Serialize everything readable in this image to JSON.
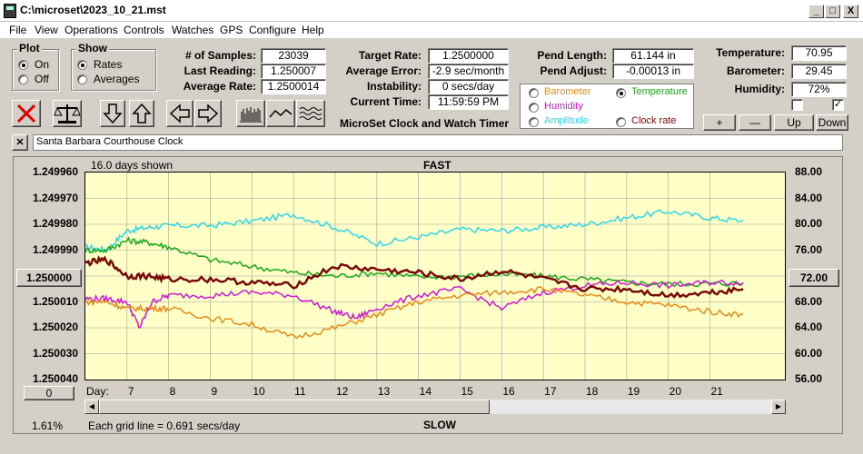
{
  "window": {
    "title": "C:\\microset\\2023_10_21.mst",
    "minimize": "_",
    "maximize": "□",
    "close": "X"
  },
  "menu": [
    "File",
    "View",
    "Operations",
    "Controls",
    "Watches",
    "GPS",
    "Configure",
    "Help"
  ],
  "plot_group": {
    "title": "Plot",
    "options": [
      "On",
      "Off"
    ],
    "selected": "On"
  },
  "show_group": {
    "title": "Show",
    "options": [
      "Rates",
      "Averages"
    ],
    "selected": "Rates"
  },
  "stats": {
    "samples_label": "# of Samples:",
    "samples": "23039",
    "last_reading_label": "Last Reading:",
    "last_reading": "1.250007",
    "average_rate_label": "Average Rate:",
    "average_rate": "1.2500014",
    "target_rate_label": "Target Rate:",
    "target_rate": "1.2500000",
    "average_error_label": "Average Error:",
    "average_error": "-2.9 sec/month",
    "instability_label": "Instability:",
    "instability": "0 secs/day",
    "current_time_label": "Current Time:",
    "current_time": "11:59:59 PM",
    "pend_length_label": "Pend Length:",
    "pend_length": "61.144 in",
    "pend_adjust_label": "Pend Adjust:",
    "pend_adjust": "-0.00013 in"
  },
  "env": {
    "temperature_label": "Temperature:",
    "temperature": "70.95",
    "barometer_label": "Barometer:",
    "barometer": "29.45",
    "humidity_label": "Humidity:",
    "humidity": "72%"
  },
  "app_caption": "MicroSet Clock and Watch Timer",
  "secondary_options": [
    {
      "label": "Barometer",
      "color": "#e88a1a",
      "selected": false
    },
    {
      "label": "Temperature",
      "color": "#1aa81a",
      "selected": true
    },
    {
      "label": "Humidity",
      "color": "#d21ad2",
      "selected": false
    },
    {
      "label": "Clock rate",
      "color": "#7a0a0a",
      "selected": false
    },
    {
      "label": "Amplitude",
      "color": "#30d8e8",
      "selected": false
    }
  ],
  "scale_buttons": {
    "plus": "+",
    "minus": "—",
    "up": "Up",
    "down": "Down"
  },
  "clock_name": "Santa Barbara Courthouse Clock",
  "clear_glyph": "✕",
  "chart_info": {
    "days_shown": "16.0 days shown",
    "top_label": "FAST",
    "bottom_label": "SLOW",
    "grid_note": "Each grid line = 0.691 secs/day",
    "percent": "1.61%",
    "x_prefix": "Day:",
    "left_center_button": "1.250000",
    "right_center_button": "72.00",
    "bottom_left_button": "0"
  },
  "chart_data": {
    "type": "line",
    "xlabel": "Day:",
    "x_ticks": [
      7,
      8,
      9,
      10,
      11,
      12,
      13,
      14,
      15,
      16,
      17,
      18,
      19,
      20,
      21
    ],
    "xlim": [
      6.0,
      22.8
    ],
    "y_left_ticks": [
      "1.249960",
      "1.249970",
      "1.249980",
      "1.249990",
      "1.250000",
      "1.250010",
      "1.250020",
      "1.250030",
      "1.250040"
    ],
    "y_right_ticks": [
      "88.00",
      "84.00",
      "80.00",
      "76.00",
      "72.00",
      "68.00",
      "64.00",
      "60.00",
      "56.00"
    ],
    "y_right_range": [
      56,
      88
    ],
    "series": [
      {
        "color": "#30d8e8",
        "x": [
          6.0,
          6.5,
          7.0,
          7.5,
          8.0,
          9.0,
          10.0,
          11.0,
          12.0,
          13.0,
          14.0,
          15.0,
          16.0,
          17.0,
          18.0,
          19.0,
          20.0,
          21.0,
          21.8
        ],
        "y": [
          76.5,
          76.0,
          79.0,
          79.5,
          79.8,
          79.8,
          80.5,
          81.5,
          79.5,
          77.0,
          78.0,
          79.2,
          79.0,
          79.5,
          80.0,
          81.0,
          82.0,
          81.0,
          80.5
        ]
      },
      {
        "color": "#1aa81a",
        "x": [
          6.0,
          6.5,
          7.0,
          7.5,
          8.0,
          9.0,
          10.0,
          11.0,
          12.0,
          13.0,
          14.0,
          15.0,
          16.0,
          17.0,
          18.0,
          19.0,
          20.0,
          21.0,
          21.8
        ],
        "y": [
          76.0,
          76.0,
          77.5,
          77.2,
          76.5,
          74.5,
          73.5,
          72.5,
          72.0,
          72.5,
          71.8,
          72.0,
          72.3,
          72.0,
          71.5,
          71.0,
          70.8,
          70.8,
          70.9
        ]
      },
      {
        "color": "#d21ad2",
        "x": [
          6.0,
          6.5,
          7.0,
          7.3,
          7.6,
          8.0,
          9.0,
          10.0,
          11.0,
          12.0,
          12.5,
          13.0,
          14.0,
          15.0,
          16.0,
          17.0,
          18.0,
          19.0,
          20.0,
          21.0,
          21.8
        ],
        "y": [
          68.5,
          68.5,
          68.0,
          64.0,
          68.0,
          69.0,
          69.0,
          69.5,
          69.0,
          66.5,
          65.5,
          67.0,
          69.0,
          70.0,
          67.0,
          69.5,
          70.5,
          71.0,
          70.5,
          71.0,
          71.0
        ]
      },
      {
        "color": "#e88a1a",
        "x": [
          6.0,
          6.5,
          7.0,
          7.5,
          8.0,
          9.0,
          10.0,
          11.0,
          12.0,
          13.0,
          14.0,
          15.0,
          16.0,
          17.0,
          18.0,
          19.0,
          20.0,
          21.0,
          21.8
        ],
        "y": [
          68.0,
          68.0,
          67.0,
          67.0,
          67.0,
          65.5,
          64.5,
          62.5,
          64.0,
          66.0,
          68.0,
          69.0,
          69.5,
          70.0,
          69.0,
          68.0,
          67.5,
          66.5,
          66.0
        ]
      },
      {
        "color": "#7a0a0a",
        "x": [
          6.0,
          6.5,
          7.0,
          7.5,
          8.0,
          9.0,
          10.0,
          11.0,
          12.0,
          13.0,
          14.0,
          15.0,
          16.0,
          17.0,
          18.0,
          19.0,
          20.0,
          21.0,
          21.8
        ],
        "y": [
          74.0,
          74.5,
          72.0,
          72.0,
          71.5,
          71.5,
          71.0,
          70.5,
          73.5,
          73.0,
          72.5,
          71.5,
          72.8,
          71.5,
          70.0,
          70.0,
          69.0,
          69.5,
          70.0
        ]
      }
    ]
  }
}
